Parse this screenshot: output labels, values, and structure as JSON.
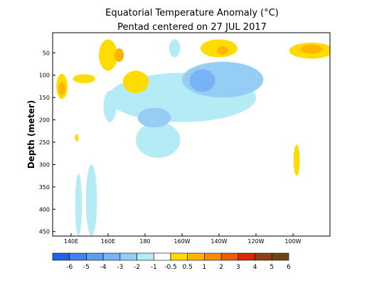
{
  "chart_data": {
    "type": "heatmap",
    "title": "Equatorial Temperature Anomaly (°C)",
    "subtitle": "Pentad centered on 27 JUL 2017",
    "xlabel": "",
    "ylabel": "Depth (meter)",
    "x_tick_labels": [
      "140E",
      "160E",
      "180",
      "160W",
      "140W",
      "120W",
      "100W"
    ],
    "x_ticks_lon": [
      140,
      160,
      180,
      200,
      220,
      240,
      260
    ],
    "xlim_lon": [
      130,
      280
    ],
    "y_ticks": [
      50,
      100,
      150,
      200,
      250,
      300,
      350,
      400,
      450
    ],
    "y_tick_labels": [
      "50",
      "100",
      "150",
      "200",
      "250",
      "300",
      "350",
      "400",
      "450"
    ],
    "ylim": [
      5,
      460
    ],
    "y_reversed": true,
    "grid": false,
    "colorbar": {
      "labels": [
        "-6",
        "-5",
        "-4",
        "-3",
        "-2",
        "-1",
        "-0.5",
        "0.5",
        "1",
        "2",
        "3",
        "4",
        "5",
        "6"
      ],
      "colors": [
        "#1e64e6",
        "#3c82f0",
        "#5a9ef5",
        "#78b4f5",
        "#96cdf5",
        "#b4ebf5",
        "#ffffff",
        "#ffdc00",
        "#ffb400",
        "#ff8c00",
        "#f05a00",
        "#dc2800",
        "#963c14",
        "#6e4614"
      ]
    },
    "anomaly_regions": [
      {
        "value": -0.5,
        "color": "#b4ebf5",
        "lon": 144,
        "depth": 390,
        "lon_radius": 1.8,
        "depth_radius": 70
      },
      {
        "value": -0.5,
        "color": "#b4ebf5",
        "lon": 151,
        "depth": 380,
        "lon_radius": 3,
        "depth_radius": 80
      },
      {
        "value": -0.5,
        "color": "#b4ebf5",
        "lon": 161,
        "depth": 170,
        "lon_radius": 3.5,
        "depth_radius": 35
      },
      {
        "value": -0.5,
        "color": "#b4ebf5",
        "lon": 200,
        "depth": 150,
        "lon_radius": 40,
        "depth_radius": 55
      },
      {
        "value": -0.5,
        "color": "#b4ebf5",
        "lon": 187,
        "depth": 245,
        "lon_radius": 12,
        "depth_radius": 40
      },
      {
        "value": -0.5,
        "color": "#b4ebf5",
        "lon": 196,
        "depth": 40,
        "lon_radius": 3,
        "depth_radius": 20
      },
      {
        "value": -1,
        "color": "#96cdf5",
        "lon": 222,
        "depth": 110,
        "lon_radius": 22,
        "depth_radius": 40
      },
      {
        "value": -1,
        "color": "#96cdf5",
        "lon": 185,
        "depth": 195,
        "lon_radius": 9,
        "depth_radius": 22
      },
      {
        "value": -2,
        "color": "#78b4f5",
        "lon": 211,
        "depth": 112,
        "lon_radius": 7,
        "depth_radius": 25
      },
      {
        "value": 0.5,
        "color": "#ffdc00",
        "lon": 135,
        "depth": 125,
        "lon_radius": 3,
        "depth_radius": 28
      },
      {
        "value": 0.5,
        "color": "#ffdc00",
        "lon": 147,
        "depth": 108,
        "lon_radius": 6,
        "depth_radius": 10
      },
      {
        "value": 0.5,
        "color": "#ffdc00",
        "lon": 160,
        "depth": 55,
        "lon_radius": 5,
        "depth_radius": 35
      },
      {
        "value": 0.5,
        "color": "#ffdc00",
        "lon": 175,
        "depth": 115,
        "lon_radius": 7,
        "depth_radius": 25
      },
      {
        "value": 0.5,
        "color": "#ffdc00",
        "lon": 220,
        "depth": 40,
        "lon_radius": 10,
        "depth_radius": 20
      },
      {
        "value": 0.5,
        "color": "#ffdc00",
        "lon": 270,
        "depth": 45,
        "lon_radius": 12,
        "depth_radius": 18
      },
      {
        "value": 0.5,
        "color": "#ffdc00",
        "lon": 262,
        "depth": 290,
        "lon_radius": 1.7,
        "depth_radius": 35
      },
      {
        "value": 0.5,
        "color": "#ffdc00",
        "lon": 143,
        "depth": 240,
        "lon_radius": 1,
        "depth_radius": 8
      },
      {
        "value": 1,
        "color": "#ffb400",
        "lon": 135,
        "depth": 130,
        "lon_radius": 1.8,
        "depth_radius": 15
      },
      {
        "value": 1,
        "color": "#ffb400",
        "lon": 166,
        "depth": 55,
        "lon_radius": 2.5,
        "depth_radius": 15
      },
      {
        "value": 1,
        "color": "#ffb400",
        "lon": 222,
        "depth": 45,
        "lon_radius": 3,
        "depth_radius": 10
      },
      {
        "value": 1,
        "color": "#ffb400",
        "lon": 270,
        "depth": 42,
        "lon_radius": 6,
        "depth_radius": 10
      }
    ]
  }
}
